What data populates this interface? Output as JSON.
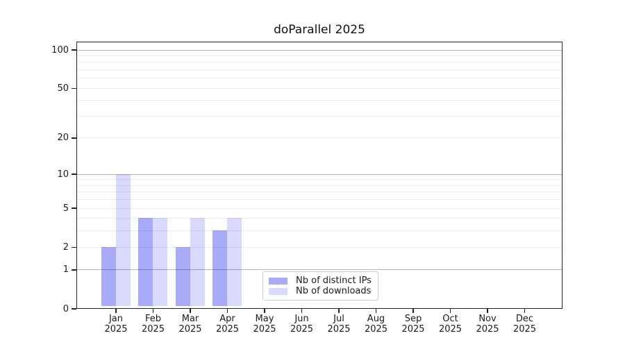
{
  "chart_data": {
    "type": "bar",
    "title": "doParallel 2025",
    "categories": [
      "Jan",
      "Feb",
      "Mar",
      "Apr",
      "May",
      "Jun",
      "Jul",
      "Aug",
      "Sep",
      "Oct",
      "Nov",
      "Dec"
    ],
    "category_year": "2025",
    "series": [
      {
        "name": "Nb of distinct IPs",
        "color": "rgba(5,10,235,0.345)",
        "values": [
          2,
          4,
          2,
          3,
          0,
          0,
          0,
          0,
          0,
          0,
          0,
          0
        ]
      },
      {
        "name": "Nb of downloads",
        "color": "rgba(5,10,235,0.155)",
        "values": [
          10,
          4,
          4,
          4,
          0,
          0,
          0,
          0,
          0,
          0,
          0,
          0
        ]
      }
    ],
    "yscale": "log1p",
    "ylim": [
      0,
      116
    ],
    "y_ticks": [
      0,
      1,
      2,
      5,
      10,
      20,
      50,
      100
    ],
    "grid": {
      "major_values": [
        1,
        10,
        100
      ],
      "minor_values": [
        2,
        3,
        4,
        5,
        6,
        7,
        8,
        9,
        20,
        30,
        40,
        50,
        60,
        70,
        80,
        90
      ],
      "major_color": "#b3b3b3",
      "minor_color": "#ececec"
    },
    "legend": {
      "position": "lower-center",
      "entries": [
        "Nb of distinct IPs",
        "Nb of downloads"
      ]
    },
    "axis_color": "#1f1f1f"
  }
}
